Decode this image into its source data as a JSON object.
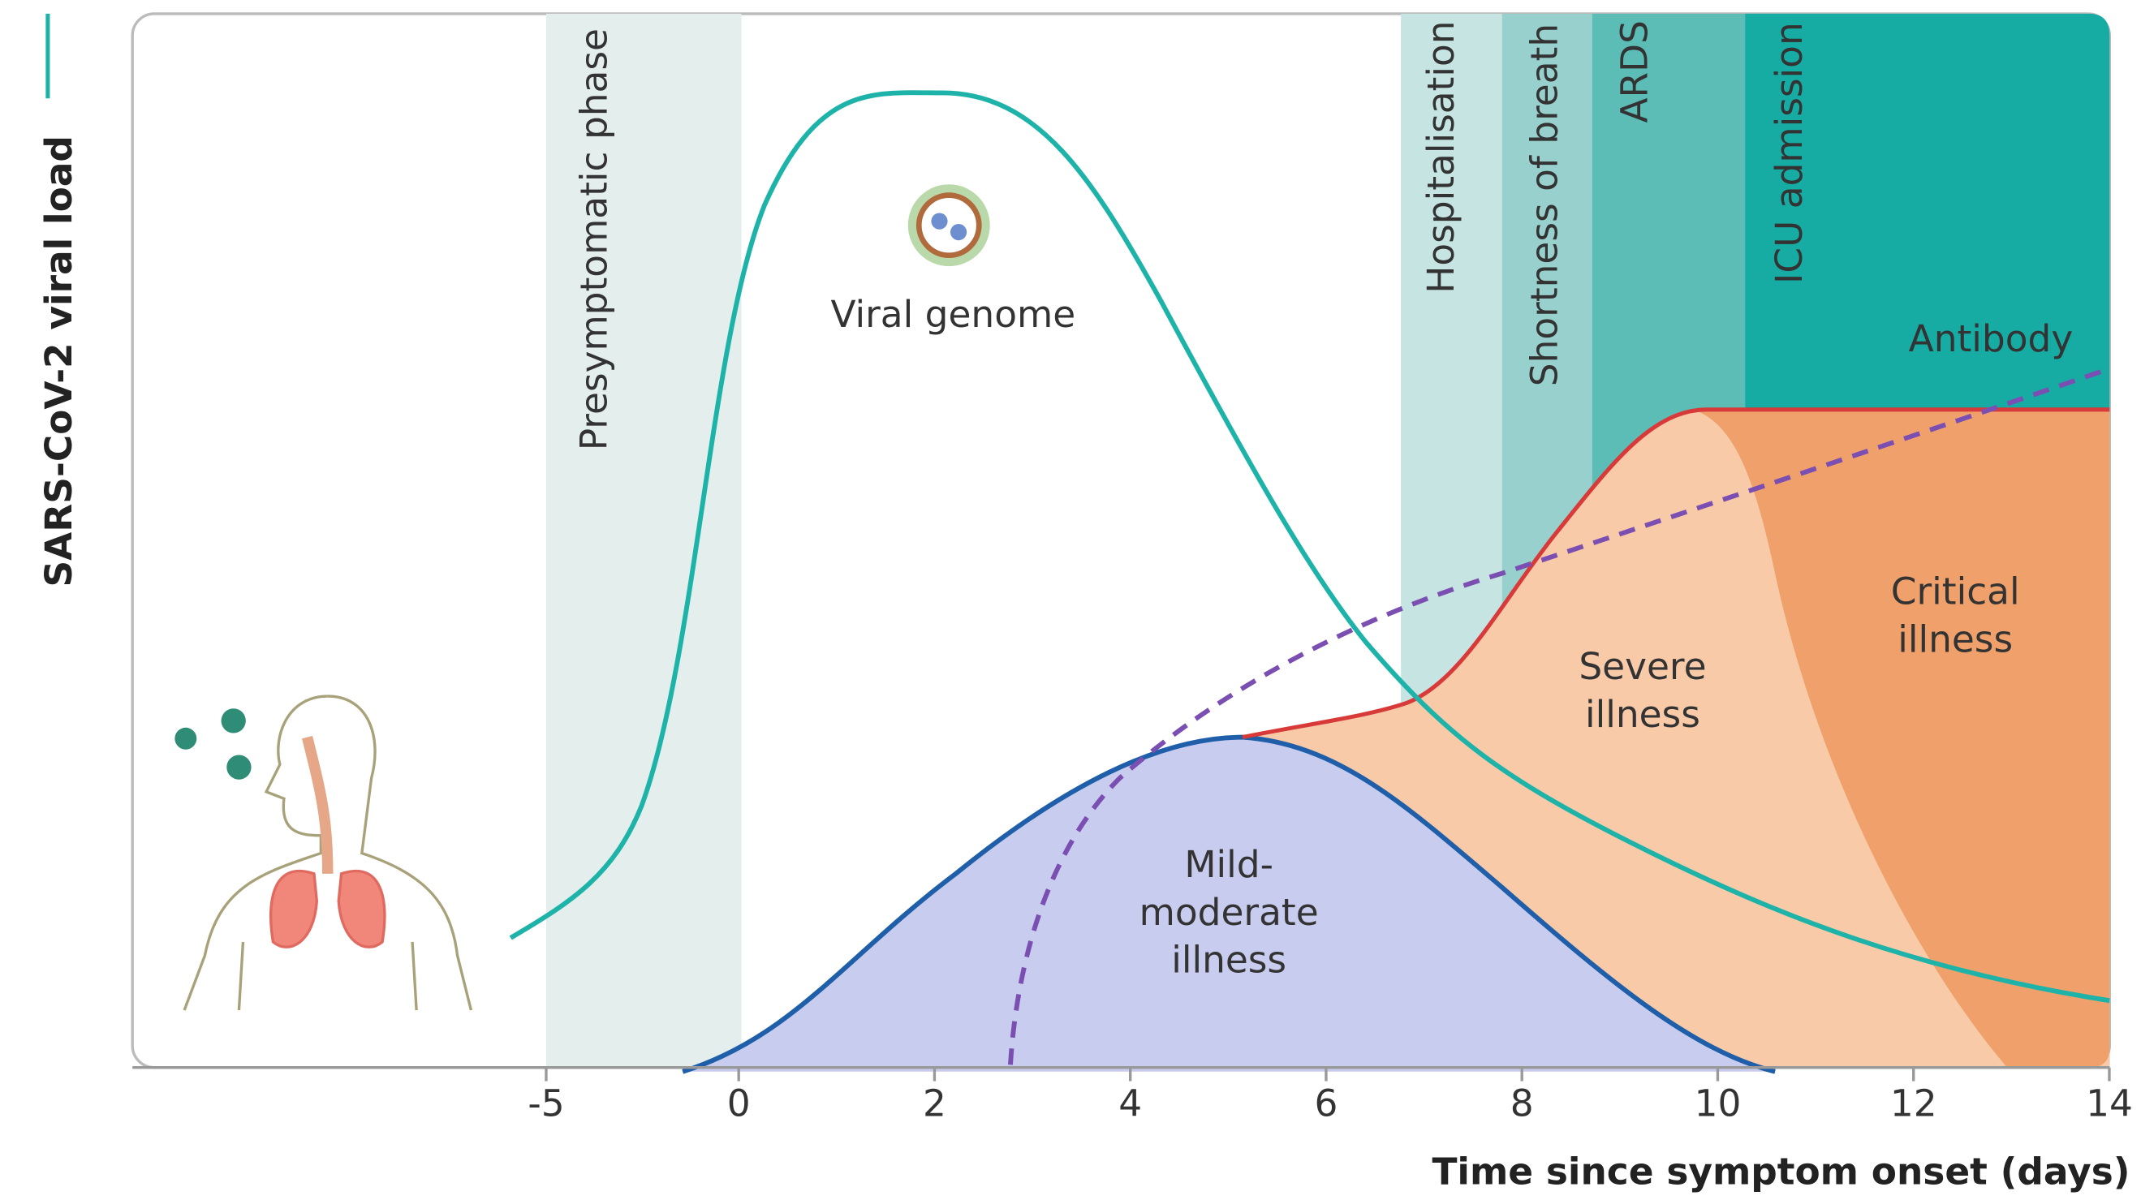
{
  "y_axis": {
    "label": "SARS-CoV-2 viral load"
  },
  "x_axis": {
    "label": "Time since symptom onset (days)",
    "ticks": [
      -5,
      0,
      2,
      4,
      6,
      8,
      10,
      12,
      14
    ]
  },
  "phases": [
    "Presymptomatic phase",
    "Hospitalisation",
    "Shortness of breath",
    "ARDS",
    "ICU admission"
  ],
  "annotations": {
    "viral_genome": "Viral genome",
    "antibody": "Antibody",
    "severe": [
      "Severe",
      "illness"
    ],
    "critical": [
      "Critical",
      "illness"
    ],
    "mild": [
      "Mild-",
      "moderate",
      "illness"
    ]
  }
}
